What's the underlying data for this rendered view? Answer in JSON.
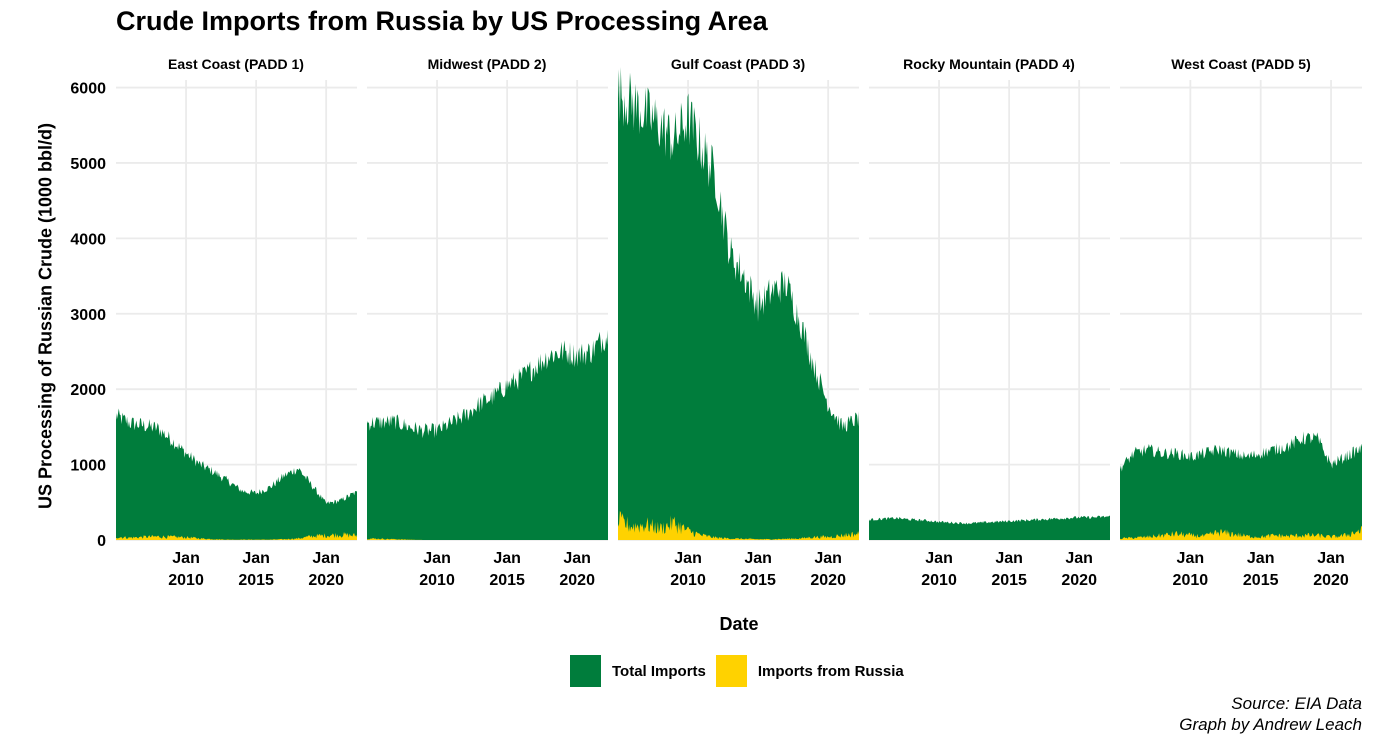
{
  "title": "Crude Imports from Russia by US Processing Area",
  "xlabel": "Date",
  "ylabel": "US Processing of Russian Crude (1000 bbl/d)",
  "caption": {
    "line1": "Source: EIA Data",
    "line2": "Graph by Andrew Leach"
  },
  "legend": [
    {
      "label": "Total Imports",
      "color": "#007d3c"
    },
    {
      "label": "Imports from Russia",
      "color": "#ffd200"
    }
  ],
  "chart_data": {
    "type": "area",
    "title": "Crude Imports from Russia by US Processing Area",
    "xlabel": "Date",
    "ylabel": "US Processing of Russian Crude (1000 bbl/d)",
    "ylim": [
      0,
      6100
    ],
    "y_ticks": [
      0,
      1000,
      2000,
      3000,
      4000,
      5000,
      6000
    ],
    "x_ticks": [
      {
        "date": "2010-01",
        "label": [
          "Jan",
          "2010"
        ]
      },
      {
        "date": "2015-01",
        "label": [
          "Jan",
          "2015"
        ]
      },
      {
        "date": "2020-01",
        "label": [
          "Jan",
          "2020"
        ]
      }
    ],
    "grid": true,
    "legend_position": "bottom",
    "panels": [
      {
        "name": "East Coast (PADD 1)",
        "series": [
          {
            "name": "Total Imports",
            "points": [
              [
                "2005-01",
                1650
              ],
              [
                "2006-01",
                1550
              ],
              [
                "2007-01",
                1520
              ],
              [
                "2008-01",
                1480
              ],
              [
                "2009-01",
                1320
              ],
              [
                "2010-01",
                1150
              ],
              [
                "2011-01",
                1000
              ],
              [
                "2012-01",
                900
              ],
              [
                "2013-01",
                780
              ],
              [
                "2014-01",
                650
              ],
              [
                "2015-01",
                620
              ],
              [
                "2016-01",
                700
              ],
              [
                "2017-01",
                850
              ],
              [
                "2018-01",
                950
              ],
              [
                "2019-01",
                720
              ],
              [
                "2020-01",
                480
              ],
              [
                "2021-01",
                520
              ],
              [
                "2022-01",
                620
              ]
            ]
          },
          {
            "name": "Imports from Russia",
            "points": [
              [
                "2005-01",
                40
              ],
              [
                "2006-01",
                30
              ],
              [
                "2007-01",
                40
              ],
              [
                "2008-01",
                45
              ],
              [
                "2009-01",
                40
              ],
              [
                "2010-01",
                35
              ],
              [
                "2011-01",
                20
              ],
              [
                "2012-01",
                10
              ],
              [
                "2013-01",
                5
              ],
              [
                "2014-01",
                5
              ],
              [
                "2015-01",
                5
              ],
              [
                "2016-01",
                5
              ],
              [
                "2017-01",
                10
              ],
              [
                "2018-01",
                20
              ],
              [
                "2019-01",
                50
              ],
              [
                "2020-01",
                60
              ],
              [
                "2021-01",
                70
              ],
              [
                "2022-01",
                60
              ]
            ]
          }
        ]
      },
      {
        "name": "Midwest (PADD 2)",
        "series": [
          {
            "name": "Total Imports",
            "points": [
              [
                "2005-01",
                1550
              ],
              [
                "2006-01",
                1560
              ],
              [
                "2007-01",
                1570
              ],
              [
                "2008-01",
                1500
              ],
              [
                "2009-01",
                1450
              ],
              [
                "2010-01",
                1450
              ],
              [
                "2011-01",
                1550
              ],
              [
                "2012-01",
                1650
              ],
              [
                "2013-01",
                1800
              ],
              [
                "2014-01",
                1900
              ],
              [
                "2015-01",
                2050
              ],
              [
                "2016-01",
                2150
              ],
              [
                "2017-01",
                2300
              ],
              [
                "2018-01",
                2450
              ],
              [
                "2019-01",
                2500
              ],
              [
                "2020-01",
                2450
              ],
              [
                "2021-01",
                2500
              ],
              [
                "2022-01",
                2700
              ]
            ]
          },
          {
            "name": "Imports from Russia",
            "points": [
              [
                "2005-01",
                20
              ],
              [
                "2006-01",
                15
              ],
              [
                "2007-01",
                10
              ],
              [
                "2008-01",
                5
              ],
              [
                "2009-01",
                0
              ],
              [
                "2010-01",
                0
              ],
              [
                "2011-01",
                0
              ],
              [
                "2012-01",
                0
              ],
              [
                "2013-01",
                0
              ],
              [
                "2014-01",
                0
              ],
              [
                "2015-01",
                0
              ],
              [
                "2016-01",
                0
              ],
              [
                "2017-01",
                0
              ],
              [
                "2018-01",
                0
              ],
              [
                "2019-01",
                0
              ],
              [
                "2020-01",
                0
              ],
              [
                "2021-01",
                0
              ],
              [
                "2022-01",
                0
              ]
            ]
          }
        ]
      },
      {
        "name": "Gulf Coast (PADD 3)",
        "series": [
          {
            "name": "Total Imports",
            "points": [
              [
                "2005-01",
                5950
              ],
              [
                "2006-01",
                5800
              ],
              [
                "2007-01",
                5650
              ],
              [
                "2008-01",
                5500
              ],
              [
                "2009-01",
                5300
              ],
              [
                "2010-01",
                5600
              ],
              [
                "2011-01",
                5200
              ],
              [
                "2012-01",
                4800
              ],
              [
                "2013-01",
                3800
              ],
              [
                "2014-01",
                3500
              ],
              [
                "2015-01",
                3100
              ],
              [
                "2016-01",
                3300
              ],
              [
                "2017-01",
                3400
              ],
              [
                "2018-01",
                2900
              ],
              [
                "2019-01",
                2300
              ],
              [
                "2020-01",
                1800
              ],
              [
                "2021-01",
                1500
              ],
              [
                "2022-01",
                1600
              ]
            ]
          },
          {
            "name": "Imports from Russia",
            "points": [
              [
                "2005-01",
                250
              ],
              [
                "2006-01",
                180
              ],
              [
                "2007-01",
                200
              ],
              [
                "2008-01",
                150
              ],
              [
                "2009-01",
                220
              ],
              [
                "2010-01",
                120
              ],
              [
                "2011-01",
                60
              ],
              [
                "2012-01",
                30
              ],
              [
                "2013-01",
                20
              ],
              [
                "2014-01",
                15
              ],
              [
                "2015-01",
                10
              ],
              [
                "2016-01",
                10
              ],
              [
                "2017-01",
                15
              ],
              [
                "2018-01",
                20
              ],
              [
                "2019-01",
                40
              ],
              [
                "2020-01",
                40
              ],
              [
                "2021-01",
                60
              ],
              [
                "2022-01",
                80
              ]
            ]
          }
        ]
      },
      {
        "name": "Rocky Mountain (PADD 4)",
        "series": [
          {
            "name": "Total Imports",
            "points": [
              [
                "2005-01",
                270
              ],
              [
                "2006-01",
                280
              ],
              [
                "2007-01",
                290
              ],
              [
                "2008-01",
                270
              ],
              [
                "2009-01",
                260
              ],
              [
                "2010-01",
                240
              ],
              [
                "2011-01",
                230
              ],
              [
                "2012-01",
                220
              ],
              [
                "2013-01",
                230
              ],
              [
                "2014-01",
                240
              ],
              [
                "2015-01",
                250
              ],
              [
                "2016-01",
                260
              ],
              [
                "2017-01",
                270
              ],
              [
                "2018-01",
                280
              ],
              [
                "2019-01",
                290
              ],
              [
                "2020-01",
                300
              ],
              [
                "2021-01",
                300
              ],
              [
                "2022-01",
                310
              ]
            ]
          },
          {
            "name": "Imports from Russia",
            "points": [
              [
                "2005-01",
                0
              ],
              [
                "2022-01",
                0
              ]
            ]
          }
        ]
      },
      {
        "name": "West Coast (PADD 5)",
        "series": [
          {
            "name": "Total Imports",
            "points": [
              [
                "2005-01",
                950
              ],
              [
                "2006-01",
                1150
              ],
              [
                "2007-01",
                1200
              ],
              [
                "2008-01",
                1150
              ],
              [
                "2009-01",
                1150
              ],
              [
                "2010-01",
                1100
              ],
              [
                "2011-01",
                1150
              ],
              [
                "2012-01",
                1200
              ],
              [
                "2013-01",
                1150
              ],
              [
                "2014-01",
                1100
              ],
              [
                "2015-01",
                1150
              ],
              [
                "2016-01",
                1200
              ],
              [
                "2017-01",
                1250
              ],
              [
                "2018-01",
                1350
              ],
              [
                "2019-01",
                1350
              ],
              [
                "2020-01",
                1000
              ],
              [
                "2021-01",
                1100
              ],
              [
                "2022-01",
                1200
              ]
            ]
          },
          {
            "name": "Imports from Russia",
            "points": [
              [
                "2005-01",
                20
              ],
              [
                "2006-01",
                30
              ],
              [
                "2007-01",
                40
              ],
              [
                "2008-01",
                60
              ],
              [
                "2009-01",
                80
              ],
              [
                "2010-01",
                60
              ],
              [
                "2011-01",
                50
              ],
              [
                "2012-01",
                100
              ],
              [
                "2013-01",
                80
              ],
              [
                "2014-01",
                50
              ],
              [
                "2015-01",
                40
              ],
              [
                "2016-01",
                60
              ],
              [
                "2017-01",
                50
              ],
              [
                "2018-01",
                60
              ],
              [
                "2019-01",
                60
              ],
              [
                "2020-01",
                40
              ],
              [
                "2021-01",
                60
              ],
              [
                "2022-01",
                120
              ]
            ]
          }
        ]
      }
    ]
  }
}
